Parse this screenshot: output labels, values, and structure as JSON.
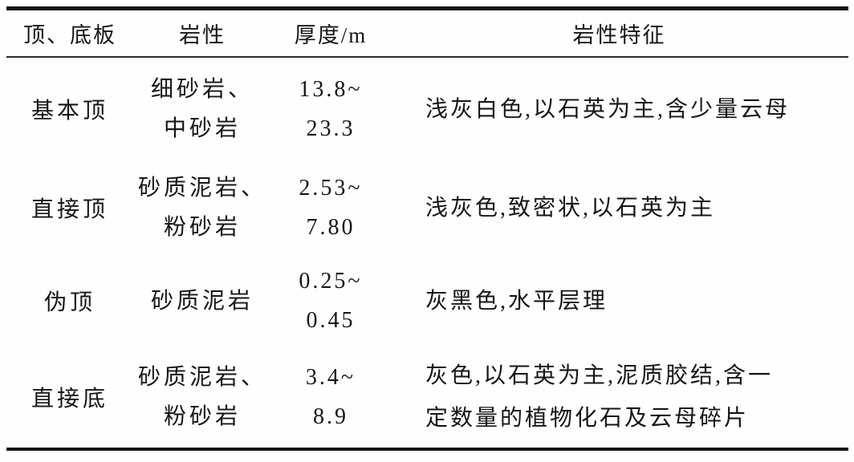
{
  "table": {
    "columns": [
      "顶、底板",
      "岩性",
      "厚度/m",
      "岩性特征"
    ],
    "rows": [
      {
        "position": "基本顶",
        "lithology": [
          "细砂岩、",
          "中砂岩"
        ],
        "thickness": [
          "13.8~",
          "23.3"
        ],
        "features": [
          "浅灰白色,以石英为主,含少量云母"
        ]
      },
      {
        "position": "直接顶",
        "lithology": [
          "砂质泥岩、",
          "粉砂岩"
        ],
        "thickness": [
          "2.53~",
          "7.80"
        ],
        "features": [
          "浅灰色,致密状,以石英为主"
        ]
      },
      {
        "position": "伪顶",
        "lithology": [
          "砂质泥岩"
        ],
        "thickness": [
          "0.25~",
          "0.45"
        ],
        "features": [
          "灰黑色,水平层理"
        ]
      },
      {
        "position": "直接底",
        "lithology": [
          "砂质泥岩、",
          "粉砂岩"
        ],
        "thickness": [
          "3.4~",
          "8.9"
        ],
        "features": [
          "灰色,以石英为主,泥质胶结,含一",
          "定数量的植物化石及云母碎片"
        ]
      }
    ]
  },
  "chart_data": {
    "type": "table",
    "title": "",
    "columns": [
      "顶、底板",
      "岩性",
      "厚度/m",
      "岩性特征"
    ],
    "rows": [
      [
        "基本顶",
        "细砂岩、中砂岩",
        "13.8~23.3",
        "浅灰白色,以石英为主,含少量云母"
      ],
      [
        "直接顶",
        "砂质泥岩、粉砂岩",
        "2.53~7.80",
        "浅灰色,致密状,以石英为主"
      ],
      [
        "伪顶",
        "砂质泥岩",
        "0.25~0.45",
        "灰黑色,水平层理"
      ],
      [
        "直接底",
        "砂质泥岩、粉砂岩",
        "3.4~8.9",
        "灰色,以石英为主,泥质胶结,含一定数量的植物化石及云母碎片"
      ]
    ]
  },
  "colors": {
    "ink": "#161616",
    "background": "#fefefe"
  }
}
